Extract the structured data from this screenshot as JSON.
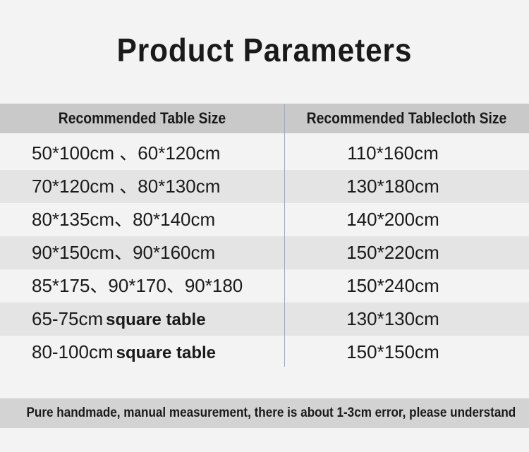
{
  "header": {
    "title": "Product Parameters"
  },
  "table": {
    "columns": [
      "Recommended Table Size",
      "Recommended Tablecloth Size"
    ],
    "rows": [
      {
        "table": "50*100cm 、60*120cm",
        "cloth": "110*160cm"
      },
      {
        "table": "70*120cm 、80*130cm",
        "cloth": "130*180cm"
      },
      {
        "table": "80*135cm、80*140cm",
        "cloth": "140*200cm"
      },
      {
        "table": "90*150cm、90*160cm",
        "cloth": "150*220cm"
      },
      {
        "table": "85*175、90*170、90*180",
        "cloth": "150*240cm"
      },
      {
        "table": "65-75cm",
        "table_note": "square table",
        "cloth": "130*130cm"
      },
      {
        "table": "80-100cm",
        "table_note": "square table",
        "cloth": "150*150cm"
      }
    ]
  },
  "footer": {
    "note": "Pure handmade, manual measurement, there is about 1-3cm error, please understand"
  }
}
